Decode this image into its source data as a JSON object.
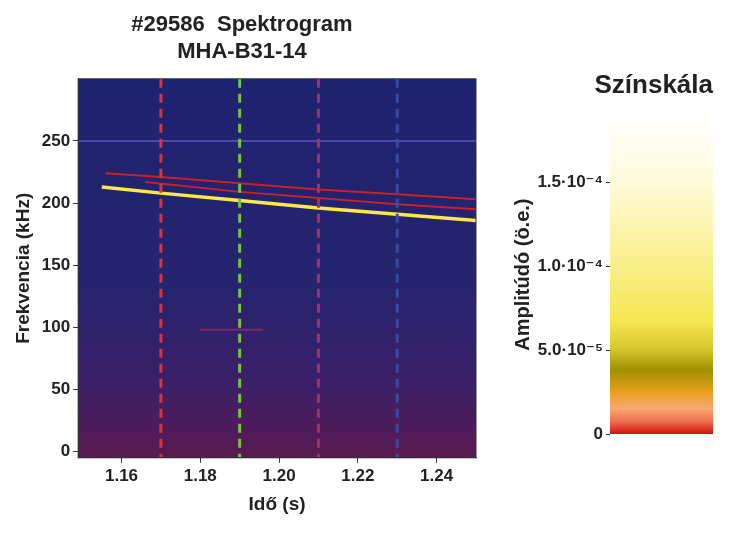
{
  "chart_data": {
    "type": "spectrogram",
    "title": "#29586  Spektrogram",
    "subtitle": "MHA-B31-14",
    "x_label": "Idő (s)",
    "y_label": "Frekvencia (kHz)",
    "xlim": [
      1.149,
      1.25
    ],
    "xticks": [
      1.16,
      1.18,
      {
        "value": 1.2,
        "label": "1.20"
      },
      1.22,
      1.24
    ],
    "ylim": [
      -5,
      300
    ],
    "yticks": [
      0,
      50,
      100,
      150,
      200,
      250
    ],
    "grid": false,
    "series": [
      {
        "color": "#4a4aa8",
        "x": [
          1.149,
          1.25
        ],
        "values": [
          250,
          250
        ]
      },
      {
        "color": "#7a2a6a",
        "x": [
          1.18,
          1.196
        ],
        "values": [
          98,
          98
        ]
      },
      {
        "color": "#c8202a",
        "x": [
          1.156,
          1.17,
          1.19,
          1.21,
          1.23,
          1.25
        ],
        "values": [
          224,
          221,
          216,
          211,
          207,
          203
        ]
      },
      {
        "color": "#c8202a",
        "x": [
          1.166,
          1.19,
          1.21,
          1.23,
          1.25
        ],
        "values": [
          217,
          209,
          204,
          199,
          195
        ]
      },
      {
        "color": "#ffe84a",
        "x": [
          1.155,
          1.17,
          1.19,
          1.21,
          1.23,
          1.25
        ],
        "values": [
          213,
          208,
          202,
          196,
          191,
          186
        ]
      }
    ],
    "vlines": [
      {
        "x": 1.17,
        "color": "#e0303a",
        "line_style": "dashed"
      },
      {
        "x": 1.19,
        "color": "#7cc040",
        "line_style": "dashed"
      },
      {
        "x": 1.21,
        "color": "#a0306e",
        "line_style": "dashed"
      },
      {
        "x": 1.23,
        "color": "#3a4aa0",
        "line_style": "dashed"
      }
    ],
    "colorbar": {
      "title": "Színskála",
      "label": "Amplitúdó (ö.e.)",
      "range": [
        0,
        0.00019
      ],
      "ticks": [
        0,
        {
          "value": 5e-05,
          "label": "5.0·10⁻⁵"
        },
        {
          "value": 0.0001,
          "label": "1.0·10⁻⁴"
        },
        {
          "value": 0.00015,
          "label": "1.5·10⁻⁴"
        }
      ]
    }
  }
}
